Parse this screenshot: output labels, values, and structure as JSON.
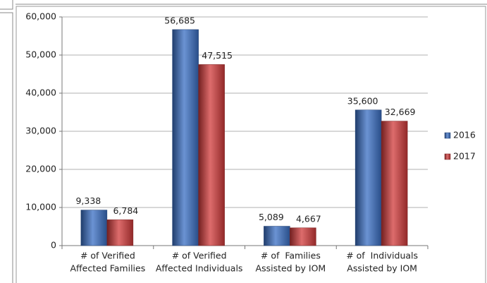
{
  "chart_data": {
    "type": "bar",
    "categories": [
      [
        "# of Verified",
        "Affected Families"
      ],
      [
        "# of Verified",
        "Affected Individuals"
      ],
      [
        "# of  Families",
        "Assisted by IOM"
      ],
      [
        "# of  Individuals",
        "Assisted by IOM"
      ]
    ],
    "series": [
      {
        "name": "2016",
        "color": "#3a6fc4",
        "values": [
          9338,
          56685,
          5089,
          35600
        ],
        "value_labels": [
          "9,338",
          "56,685",
          "5,089",
          "35,600"
        ]
      },
      {
        "name": "2017",
        "color": "#d13b3b",
        "values": [
          6784,
          47515,
          4667,
          32669
        ],
        "value_labels": [
          "6,784",
          "47,515",
          "4,667",
          "32,669"
        ]
      }
    ],
    "ylim": [
      0,
      60000
    ],
    "yticks": [
      0,
      {
        "value": 10000,
        "label": "10,000"
      },
      {
        "value": 20000,
        "label": "20,000"
      },
      {
        "value": 30000,
        "label": "30,000"
      },
      {
        "value": 40000,
        "label": "40,000"
      },
      {
        "value": 50000,
        "label": "50,000"
      },
      {
        "value": 60000,
        "label": "60,000"
      }
    ],
    "grid": true,
    "legend": "right"
  }
}
